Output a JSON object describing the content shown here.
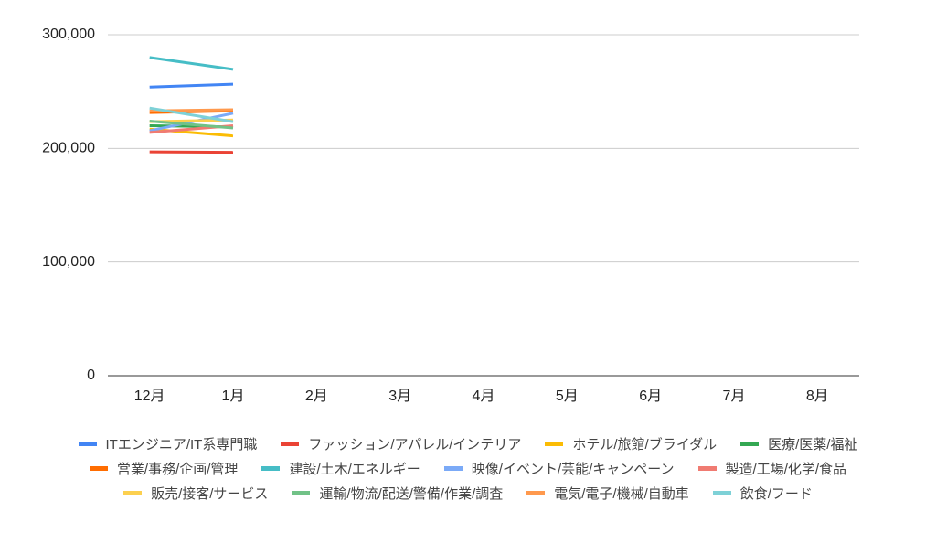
{
  "chart_data": {
    "type": "line",
    "categories": [
      "12月",
      "1月",
      "2月",
      "3月",
      "4月",
      "5月",
      "6月",
      "7月",
      "8月"
    ],
    "series": [
      {
        "name": "ITエンジニア/IT系専門職",
        "color": "#4285f4",
        "values": [
          254000,
          256500,
          null,
          null,
          null,
          null,
          null,
          null,
          null
        ]
      },
      {
        "name": "ファッション/アパレル/インテリア",
        "color": "#ea4335",
        "values": [
          197000,
          196500,
          null,
          null,
          null,
          null,
          null,
          null,
          null
        ]
      },
      {
        "name": "ホテル/旅館/ブライダル",
        "color": "#fbbc04",
        "values": [
          217000,
          211000,
          null,
          null,
          null,
          null,
          null,
          null,
          null
        ]
      },
      {
        "name": "医療/医薬/福祉",
        "color": "#34a853",
        "values": [
          220000,
          219000,
          null,
          null,
          null,
          null,
          null,
          null,
          null
        ]
      },
      {
        "name": "営業/事務/企画/管理",
        "color": "#ff6d01",
        "values": [
          231500,
          233000,
          null,
          null,
          null,
          null,
          null,
          null,
          null
        ]
      },
      {
        "name": "建設/土木/エネルギー",
        "color": "#46bdc6",
        "values": [
          280000,
          269500,
          null,
          null,
          null,
          null,
          null,
          null,
          null
        ]
      },
      {
        "name": "映像/イベント/芸能/キャンペーン",
        "color": "#7baaf7",
        "values": [
          215500,
          231000,
          null,
          null,
          null,
          null,
          null,
          null,
          null
        ]
      },
      {
        "name": "製造/工場/化学/食品",
        "color": "#f07b72",
        "values": [
          214000,
          220000,
          null,
          null,
          null,
          null,
          null,
          null,
          null
        ]
      },
      {
        "name": "販売/接客/サービス",
        "color": "#fcd04f",
        "values": [
          223500,
          225000,
          null,
          null,
          null,
          null,
          null,
          null,
          null
        ]
      },
      {
        "name": "運輸/物流/配送/警備/作業/調査",
        "color": "#71c287",
        "values": [
          224000,
          218000,
          null,
          null,
          null,
          null,
          null,
          null,
          null
        ]
      },
      {
        "name": "電気/電子/機械/自動車",
        "color": "#ff994d",
        "values": [
          233000,
          234000,
          null,
          null,
          null,
          null,
          null,
          null,
          null
        ]
      },
      {
        "name": "飲食/フード",
        "color": "#7ed1d7",
        "values": [
          235500,
          223500,
          null,
          null,
          null,
          null,
          null,
          null,
          null
        ]
      }
    ],
    "ylim": [
      0,
      300000
    ],
    "yticks": [
      0,
      {
        "value": 100000,
        "label": "100,000"
      },
      {
        "value": 200000,
        "label": "200,000"
      },
      {
        "value": 300000,
        "label": "300,000"
      }
    ],
    "grid": true,
    "legend": "bottom"
  }
}
